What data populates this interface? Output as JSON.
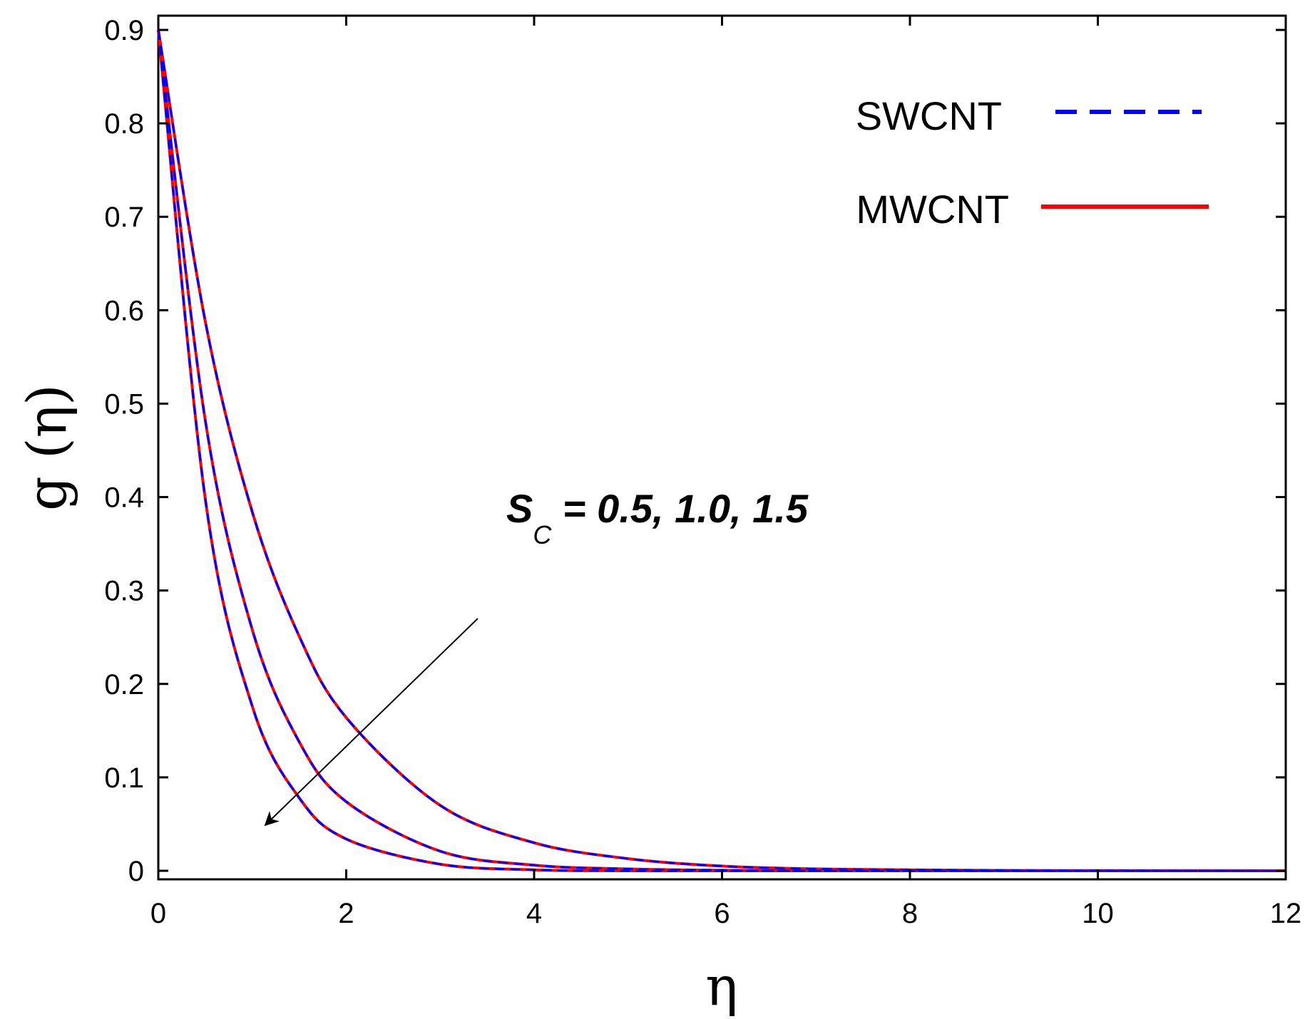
{
  "chart_data": {
    "type": "line",
    "xlabel": "η",
    "ylabel": "g (η)",
    "xlim": [
      0,
      12
    ],
    "ylim": [
      0,
      0.9
    ],
    "xticks": [
      0,
      2,
      4,
      6,
      8,
      10,
      12
    ],
    "xtick_labels": [
      "0",
      "2",
      "4",
      "6",
      "8",
      "10",
      "12"
    ],
    "yticks": [
      0,
      0.1,
      0.2,
      0.3,
      0.4,
      0.5,
      0.6,
      0.7,
      0.8,
      0.9
    ],
    "ytick_labels": [
      "0",
      "0.1",
      "0.2",
      "0.3",
      "0.4",
      "0.5",
      "0.6",
      "0.7",
      "0.8",
      "0.9"
    ],
    "grid": false,
    "legend_position": "top-right",
    "x": [
      0,
      0.5,
      1,
      1.5,
      2,
      3,
      4,
      5,
      6,
      7,
      8,
      9,
      10,
      11,
      12
    ],
    "series": [
      {
        "name": "SWCNT",
        "style": "dashed",
        "color": "#0000ff",
        "curves": [
          [
            0.9,
            0.588,
            0.384,
            0.251,
            0.164,
            0.07,
            0.03,
            0.013,
            0.005,
            0.002,
            0.001,
            0.0004,
            0.0002,
            0.0001,
            0.0
          ],
          [
            0.9,
            0.482,
            0.258,
            0.138,
            0.074,
            0.021,
            0.006,
            0.002,
            0.0005,
            0.0001,
            0.0,
            0.0,
            0.0,
            0.0,
            0.0
          ],
          [
            0.9,
            0.398,
            0.176,
            0.078,
            0.034,
            0.007,
            0.001,
            0.0,
            0.0,
            0.0,
            0.0,
            0.0,
            0.0,
            0.0,
            0.0
          ]
        ]
      },
      {
        "name": "MWCNT",
        "style": "solid",
        "color": "#ff0000",
        "curves": [
          [
            0.9,
            0.588,
            0.384,
            0.251,
            0.164,
            0.07,
            0.03,
            0.013,
            0.005,
            0.002,
            0.001,
            0.0004,
            0.0002,
            0.0001,
            0.0
          ],
          [
            0.9,
            0.482,
            0.258,
            0.138,
            0.074,
            0.021,
            0.006,
            0.002,
            0.0005,
            0.0001,
            0.0,
            0.0,
            0.0,
            0.0,
            0.0
          ],
          [
            0.9,
            0.398,
            0.176,
            0.078,
            0.034,
            0.007,
            0.001,
            0.0,
            0.0,
            0.0,
            0.0,
            0.0,
            0.0,
            0.0,
            0.0
          ]
        ]
      }
    ],
    "annotation": {
      "symbol": "S",
      "subscript": "C",
      "text": " = 0.5, 1.0, 1.5",
      "arrow_from": [
        3.4,
        0.27
      ],
      "arrow_to": [
        1.15,
        0.05
      ]
    }
  }
}
